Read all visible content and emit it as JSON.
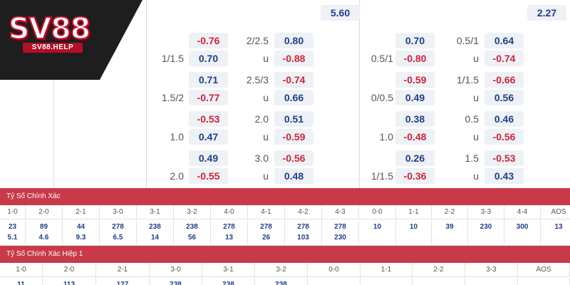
{
  "brand": {
    "name": "SV88",
    "site": "SV88.HELP"
  },
  "top_partial": {
    "left": "5.60",
    "right": "2.27"
  },
  "odds_left": [
    {
      "h1": "",
      "v1": "-0.76",
      "h2": "1/1.5",
      "v2": "0.70",
      "h3": "2/2.5",
      "v3": "0.80",
      "h4": "u",
      "v4": "-0.88"
    },
    {
      "h1": "",
      "v1": "0.71",
      "h2": "1.5/2",
      "v2": "-0.77",
      "h3": "2.5/3",
      "v3": "-0.74",
      "h4": "u",
      "v4": "0.66"
    },
    {
      "h1": "",
      "v1": "-0.53",
      "h2": "1.0",
      "v2": "0.47",
      "h3": "2.0",
      "v3": "0.51",
      "h4": "u",
      "v4": "-0.59"
    },
    {
      "h1": "",
      "v1": "0.49",
      "h2": "2.0",
      "v2": "-0.55",
      "h3": "3.0",
      "v3": "-0.56",
      "h4": "u",
      "v4": "0.48"
    }
  ],
  "odds_right": [
    {
      "v1": "0.70",
      "h2": "0.5/1",
      "v2": "-0.80",
      "h3": "0.5/1",
      "v3": "0.64",
      "h4": "u",
      "v4": "-0.74"
    },
    {
      "v1": "-0.59",
      "h2": "0/0.5",
      "v2": "0.49",
      "h3": "1/1.5",
      "v3": "-0.66",
      "h4": "u",
      "v4": "0.56"
    },
    {
      "v1": "0.38",
      "h2": "1.0",
      "v2": "-0.48",
      "h3": "0.5",
      "v3": "0.46",
      "h4": "u",
      "v4": "-0.56"
    },
    {
      "v1": "0.26",
      "h2": "1/1.5",
      "v2": "-0.36",
      "h3": "1.5",
      "v3": "-0.53",
      "h4": "u",
      "v4": "0.43"
    }
  ],
  "correct_score": {
    "title": "Tỷ Số Chính Xác",
    "headers": [
      "1-0",
      "2-0",
      "2-1",
      "3-0",
      "3-1",
      "3-2",
      "4-0",
      "4-1",
      "4-2",
      "4-3",
      "0-0",
      "1-1",
      "2-2",
      "3-3",
      "4-4",
      "AOS"
    ],
    "row1": [
      "23",
      "89",
      "44",
      "278",
      "238",
      "238",
      "278",
      "278",
      "278",
      "278",
      "10",
      "10",
      "39",
      "230",
      "300",
      "13"
    ],
    "row2": [
      "5.1",
      "4.6",
      "9.3",
      "6.5",
      "14",
      "56",
      "13",
      "26",
      "103",
      "230",
      "",
      "",
      "",
      "",
      "",
      ""
    ]
  },
  "correct_score_h1": {
    "title": "Tỷ Số Chính Xác Hiệp 1",
    "headers": [
      "1-0",
      "2-0",
      "2-1",
      "3-0",
      "3-1",
      "3-2",
      "0-0",
      "1-1",
      "2-2",
      "3-3",
      "AOS"
    ],
    "row1": [
      "11",
      "113",
      "127",
      "238",
      "238",
      "238",
      "",
      "",
      "",
      "",
      ""
    ]
  },
  "colors": {
    "positive": "#1f3f8a",
    "negative": "#d0243a",
    "section_header": "#c93a48",
    "chip_bg": "#eef1f5"
  }
}
